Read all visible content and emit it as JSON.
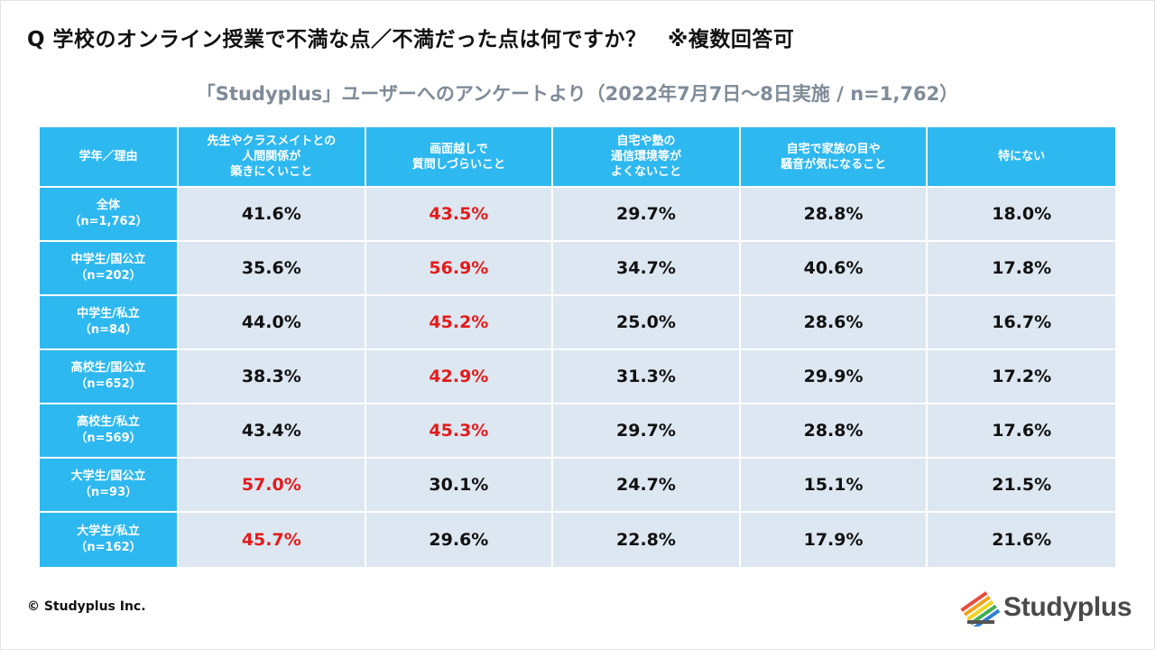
{
  "question": "Q 学校のオンライン授業で不満な点／不満だった点は何ですか？　※複数回答可",
  "subtitle": "「Studyplus」ユーザーへのアンケートより（2022年7月7日～8日実施 / n=1,762）",
  "colors": {
    "header": "#2eb8f0",
    "cell": "#dde7f1",
    "highlight": "#e41b1b",
    "subtitle": "#7f8b98"
  },
  "chart_data": {
    "type": "table",
    "corner_header": "学年／理由",
    "columns": [
      [
        "先生やクラスメイトとの",
        "人間関係が",
        "築きにくいこと"
      ],
      [
        "画面越しで",
        "質問しづらいこと"
      ],
      [
        "自宅や塾の",
        "通信環境等が",
        "よくないこと"
      ],
      [
        "自宅で家族の目や",
        "騒音が気になること"
      ],
      [
        "特にない"
      ]
    ],
    "rows": [
      {
        "label": "全体",
        "n": "（n=1,762）",
        "values": [
          "41.6%",
          "43.5%",
          "29.7%",
          "28.8%",
          "18.0%"
        ],
        "highlight": [
          1
        ]
      },
      {
        "label": "中学生/国公立",
        "n": "（n=202）",
        "values": [
          "35.6%",
          "56.9%",
          "34.7%",
          "40.6%",
          "17.8%"
        ],
        "highlight": [
          1
        ]
      },
      {
        "label": "中学生/私立",
        "n": "（n=84）",
        "values": [
          "44.0%",
          "45.2%",
          "25.0%",
          "28.6%",
          "16.7%"
        ],
        "highlight": [
          1
        ]
      },
      {
        "label": "高校生/国公立",
        "n": "（n=652）",
        "values": [
          "38.3%",
          "42.9%",
          "31.3%",
          "29.9%",
          "17.2%"
        ],
        "highlight": [
          1
        ]
      },
      {
        "label": "高校生/私立",
        "n": "（n=569）",
        "values": [
          "43.4%",
          "45.3%",
          "29.7%",
          "28.8%",
          "17.6%"
        ],
        "highlight": [
          1
        ]
      },
      {
        "label": "大学生/国公立",
        "n": "（n=93）",
        "values": [
          "57.0%",
          "30.1%",
          "24.7%",
          "15.1%",
          "21.5%"
        ],
        "highlight": [
          0
        ]
      },
      {
        "label": "大学生/私立",
        "n": "（n=162）",
        "values": [
          "45.7%",
          "29.6%",
          "22.8%",
          "17.9%",
          "21.6%"
        ],
        "highlight": [
          0
        ]
      }
    ]
  },
  "footer": {
    "copyright": "© Studyplus Inc."
  },
  "logo": {
    "text": "Studyplus",
    "icon": "studyplus-logo-icon"
  }
}
